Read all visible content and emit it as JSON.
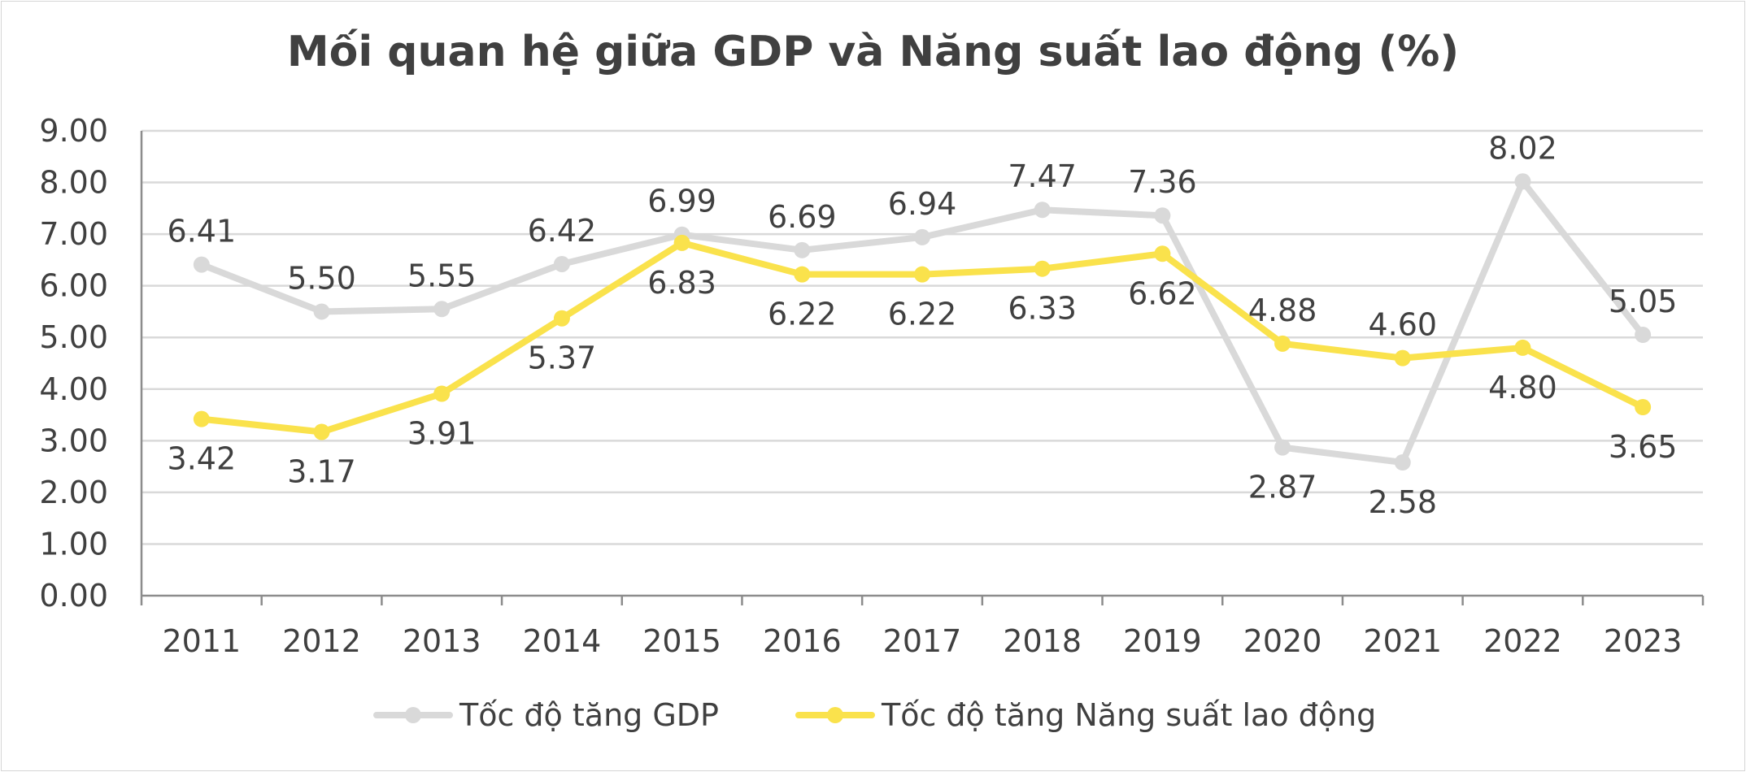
{
  "chart_data": {
    "type": "line",
    "title": "Mối quan hệ giữa GDP và Năng suất lao động (%)",
    "xlabel": "",
    "ylabel": "",
    "categories": [
      "2011",
      "2012",
      "2013",
      "2014",
      "2015",
      "2016",
      "2017",
      "2018",
      "2019",
      "2020",
      "2021",
      "2022",
      "2023"
    ],
    "ylim": [
      0,
      9
    ],
    "yticks": [
      "0.00",
      "1.00",
      "2.00",
      "3.00",
      "4.00",
      "5.00",
      "6.00",
      "7.00",
      "8.00",
      "9.00"
    ],
    "grid": true,
    "legend_position": "bottom",
    "series": [
      {
        "name": "Tốc độ tăng GDP",
        "color": "#d9d9d9",
        "values": [
          6.41,
          5.5,
          5.55,
          6.42,
          6.99,
          6.69,
          6.94,
          7.47,
          7.36,
          2.87,
          2.58,
          8.02,
          5.05
        ],
        "labels": [
          "6.41",
          "5.50",
          "5.55",
          "6.42",
          "6.99",
          "6.69",
          "6.94",
          "7.47",
          "7.36",
          "2.87",
          "2.58",
          "8.02",
          "5.05"
        ],
        "label_side": [
          "above",
          "above",
          "above",
          "above",
          "above",
          "above",
          "above",
          "above",
          "above",
          "below",
          "below",
          "above",
          "above"
        ]
      },
      {
        "name": "Tốc độ tăng Năng suất lao động",
        "color": "#fae24c",
        "values": [
          3.42,
          3.17,
          3.91,
          5.37,
          6.83,
          6.22,
          6.22,
          6.33,
          6.62,
          4.88,
          4.6,
          4.8,
          3.65
        ],
        "labels": [
          "3.42",
          "3.17",
          "3.91",
          "5.37",
          "6.83",
          "6.22",
          "6.22",
          "6.33",
          "6.62",
          "4.88",
          "4.60",
          "4.80",
          "3.65"
        ],
        "label_side": [
          "below",
          "below",
          "below",
          "below",
          "below",
          "below",
          "below",
          "below",
          "below",
          "above",
          "above",
          "below",
          "below"
        ]
      }
    ],
    "gridline_color": "#d9d9d9",
    "axis_color": "#8c8c8c"
  }
}
